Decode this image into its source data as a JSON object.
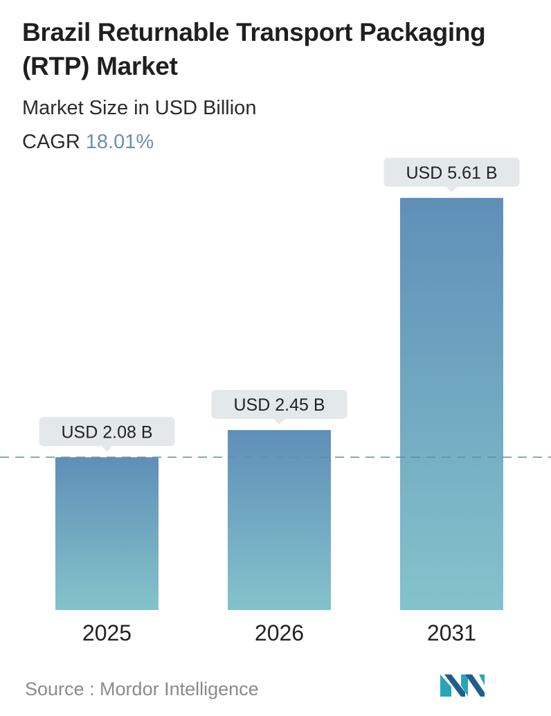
{
  "header": {
    "title": "Brazil Returnable Transport Packaging (RTP) Market",
    "subtitle": "Market Size in USD Billion",
    "cagr_label": "CAGR",
    "cagr_value": "18.01%"
  },
  "footer": {
    "source": "Source :  Mordor Intelligence"
  },
  "colors": {
    "bar_top": "#5f8fb8",
    "bar_bottom": "#84c3cb",
    "label_bg": "#e3e9ea",
    "dash": "#5f8fa8",
    "cagr": "#6b8fb0"
  },
  "chart_data": {
    "type": "bar",
    "categories": [
      "2025",
      "2026",
      "2031"
    ],
    "values": [
      2.08,
      2.45,
      5.61
    ],
    "data_labels": [
      "USD 2.08 B",
      "USD 2.45 B",
      "USD 5.61 B"
    ],
    "title": "Brazil Returnable Transport Packaging (RTP) Market",
    "subtitle": "Market Size in USD Billion",
    "reference_line": 2.08,
    "grid": false
  }
}
